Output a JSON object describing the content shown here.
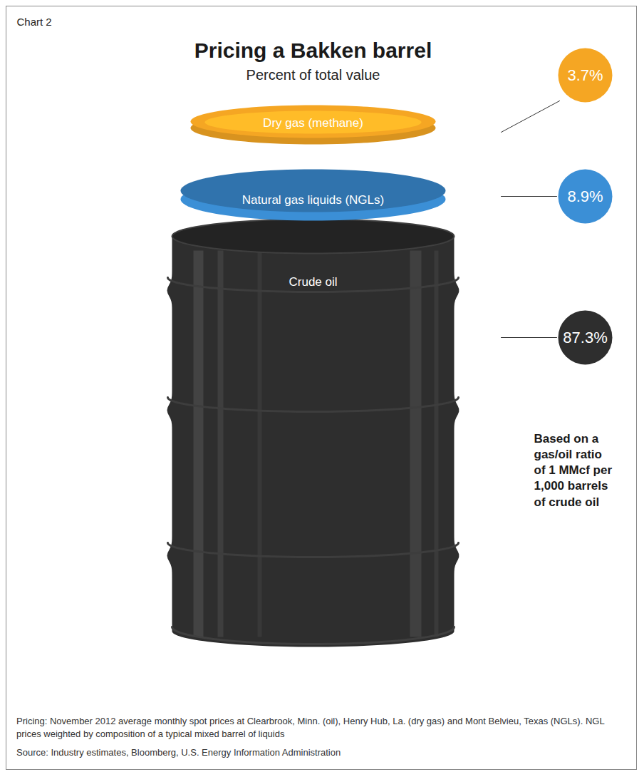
{
  "chart_data": {
    "type": "barrel",
    "chart_label": "Chart 2",
    "title": "Pricing a Bakken barrel",
    "subtitle": "Percent of total value",
    "categories": [
      "Dry gas (methane)",
      "Natural gas liquids (NGLs)",
      "Crude oil"
    ],
    "values": [
      3.7,
      8.9,
      87.3
    ],
    "value_labels": [
      "3.7%",
      "8.9%",
      "87.3%"
    ],
    "colors": [
      "#f5a623",
      "#3b8fd6",
      "#2e2e2e"
    ],
    "data_labels": true,
    "tick_labels": false,
    "annotation": "Based on a gas/oil ratio of 1 MMcf per 1,000 barrels of crude oil",
    "notes": [
      "Pricing: November 2012 average monthly spot prices at Clearbrook, Minn. (oil), Henry Hub, La. (dry gas) and Mont Belvieu, Texas (NGLs). NGL prices weighted by composition of a typical mixed barrel of liquids",
      "Source: Industry estimates, Bloomberg, U.S. Energy Information Administration"
    ]
  }
}
